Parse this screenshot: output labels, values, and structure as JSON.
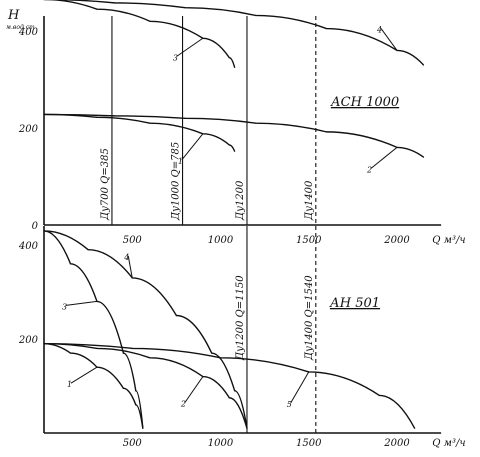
{
  "chart_data": [
    {
      "type": "line",
      "title": "АСН 1000",
      "ylabel": "Н",
      "y_unit": "м.вод.ст",
      "xlabel": "Q м³/ч",
      "xlim": [
        0,
        2200
      ],
      "ylim": [
        0,
        460
      ],
      "y_ticks": [
        "400",
        "200",
        "0"
      ],
      "x_ticks": [
        "500",
        "1000",
        "1500",
        "2000"
      ],
      "diameter_lines": [
        {
          "label": "Ду700  Q=385",
          "q": 385
        },
        {
          "label": "Ду1000  Q=785",
          "q": 785
        },
        {
          "label": "Ду1200",
          "q": 1150
        },
        {
          "label": "Ду1400",
          "q": 1540
        }
      ],
      "series": [
        {
          "name": "3",
          "x": [
            0,
            300,
            600,
            900,
            1050,
            1080
          ],
          "y": [
            465,
            445,
            420,
            385,
            345,
            325
          ]
        },
        {
          "name": "4",
          "x": [
            0,
            400,
            800,
            1200,
            1600,
            2000,
            2150
          ],
          "y": [
            465,
            458,
            448,
            432,
            405,
            360,
            330
          ]
        },
        {
          "name": "1",
          "x": [
            0,
            300,
            600,
            900,
            1050,
            1080
          ],
          "y": [
            228,
            222,
            210,
            188,
            165,
            152
          ]
        },
        {
          "name": "2",
          "x": [
            0,
            400,
            800,
            1200,
            1600,
            2000,
            2150
          ],
          "y": [
            228,
            225,
            220,
            210,
            192,
            160,
            140
          ]
        }
      ]
    },
    {
      "type": "line",
      "title": "АН 501",
      "xlabel": "Q м³/ч",
      "xlim": [
        0,
        2200
      ],
      "ylim": [
        0,
        460
      ],
      "y_ticks": [
        "400",
        "200"
      ],
      "x_ticks": [
        "500",
        "1000",
        "1500",
        "2000"
      ],
      "diameter_lines": [
        {
          "label": "Ду1200  Q=1150",
          "q": 1150
        },
        {
          "label": "Ду1400  Q=1540",
          "q": 1540
        }
      ],
      "series": [
        {
          "name": "3",
          "x": [
            0,
            150,
            300,
            450,
            520,
            560
          ],
          "y": [
            430,
            360,
            280,
            170,
            90,
            10
          ]
        },
        {
          "name": "4",
          "x": [
            0,
            250,
            500,
            750,
            950,
            1080,
            1150
          ],
          "y": [
            430,
            390,
            330,
            250,
            170,
            90,
            10
          ]
        },
        {
          "name": "1",
          "x": [
            0,
            150,
            300,
            450,
            520,
            560
          ],
          "y": [
            190,
            170,
            140,
            95,
            60,
            10
          ]
        },
        {
          "name": "2",
          "x": [
            0,
            300,
            600,
            900,
            1050,
            1150
          ],
          "y": [
            190,
            180,
            160,
            120,
            75,
            10
          ]
        },
        {
          "name": "5",
          "x": [
            0,
            500,
            1000,
            1500,
            1900,
            2100
          ],
          "y": [
            190,
            180,
            160,
            130,
            80,
            10
          ]
        }
      ]
    }
  ]
}
